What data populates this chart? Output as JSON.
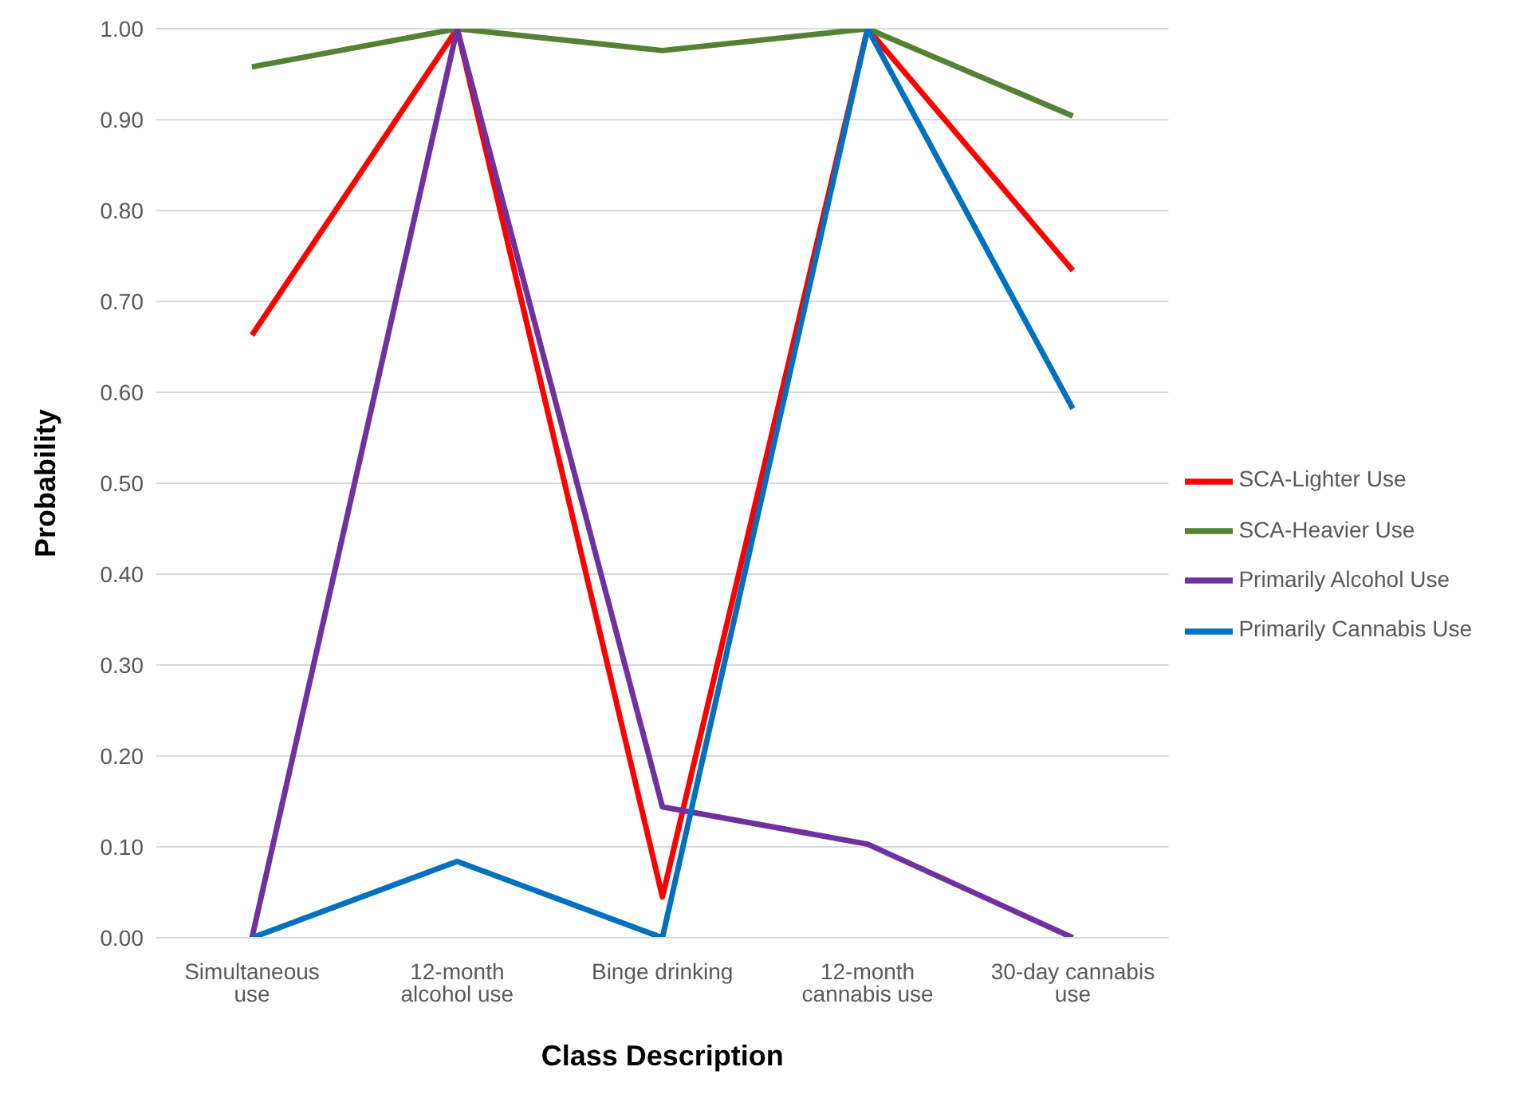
{
  "chart_data": {
    "type": "line",
    "xlabel": "Class Description",
    "ylabel": "Probability",
    "categories": [
      "Simultaneous use",
      "12-month alcohol use",
      "Binge drinking",
      "12-month cannabis use",
      "30-day cannabis use"
    ],
    "series": [
      {
        "name": "SCA-Lighter Use",
        "color": "#ff0000",
        "values": [
          0.663,
          1.0,
          0.045,
          1.0,
          0.734
        ]
      },
      {
        "name": "SCA-Heavier Use",
        "color": "#548235",
        "values": [
          0.958,
          1.0,
          0.976,
          1.0,
          0.904
        ]
      },
      {
        "name": "Primarily Alcohol Use",
        "color": "#7030a0",
        "values": [
          0.0,
          1.0,
          0.144,
          0.103,
          0.0
        ]
      },
      {
        "name": "Primarily Cannabis Use",
        "color": "#0070c0",
        "values": [
          0.0,
          0.084,
          0.0,
          1.0,
          0.582
        ]
      }
    ],
    "ylim": [
      0,
      1
    ],
    "yticks": [
      {
        "value": 0,
        "label": "0.00"
      },
      {
        "value": 0.1,
        "label": "0.10"
      },
      {
        "value": 0.2,
        "label": "0.20"
      },
      {
        "value": 0.3,
        "label": "0.30"
      },
      {
        "value": 0.4,
        "label": "0.40"
      },
      {
        "value": 0.5,
        "label": "0.50"
      },
      {
        "value": 0.6,
        "label": "0.60"
      },
      {
        "value": 0.7,
        "label": "0.70"
      },
      {
        "value": 0.8,
        "label": "0.80"
      },
      {
        "value": 0.9,
        "label": "0.90"
      },
      {
        "value": 1,
        "label": "1.00"
      }
    ],
    "grid": "y",
    "legend": "right",
    "marker": "none",
    "line_style": "solid"
  }
}
